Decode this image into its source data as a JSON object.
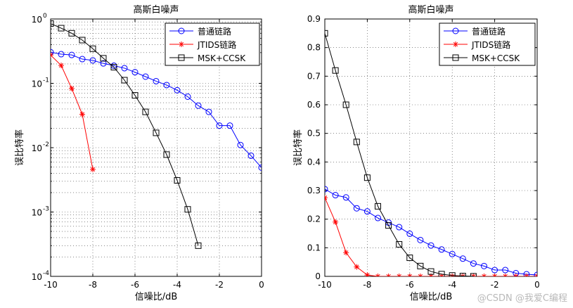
{
  "watermark": "@CSDN @我爱C编程",
  "chart_data": [
    {
      "type": "line",
      "title": "高斯白噪声",
      "xlabel": "信噪比/dB",
      "ylabel": "误比特率",
      "yscale": "log",
      "xlim": [
        -10,
        0
      ],
      "ylim": [
        0.0001,
        1
      ],
      "grid": true,
      "legend_position": "top-right",
      "xticks": [
        -10,
        -8,
        -6,
        -4,
        -2,
        0
      ],
      "xtick_labels": [
        "-10",
        "-8",
        "-6",
        "-4",
        "-2",
        "0"
      ],
      "yticks": [
        0.0001,
        0.001,
        0.01,
        0.1,
        1
      ],
      "ytick_labels": [
        {
          "base": "10",
          "exp": "-4"
        },
        {
          "base": "10",
          "exp": "-3"
        },
        {
          "base": "10",
          "exp": "-2"
        },
        {
          "base": "10",
          "exp": "-1"
        },
        {
          "base": "10",
          "exp": "0"
        }
      ],
      "series": [
        {
          "name": "普通链路",
          "color": "#0000ff",
          "marker": "circle",
          "x": [
            -10,
            -9.5,
            -9,
            -8.5,
            -8,
            -7.5,
            -7,
            -6.5,
            -6,
            -5.5,
            -5,
            -4.5,
            -4,
            -3.5,
            -3,
            -2.5,
            -2,
            -1.5,
            -1,
            -0.5,
            0
          ],
          "y": [
            0.305,
            0.284,
            0.276,
            0.238,
            0.227,
            0.204,
            0.188,
            0.172,
            0.149,
            0.127,
            0.108,
            0.094,
            0.078,
            0.062,
            0.045,
            0.036,
            0.022,
            0.022,
            0.011,
            0.0075,
            0.0049
          ]
        },
        {
          "name": "JTIDS链路",
          "color": "#ff0000",
          "marker": "star",
          "x": [
            -10,
            -9.5,
            -9,
            -8.5,
            -8
          ],
          "y": [
            0.275,
            0.19,
            0.083,
            0.033,
            0.0046
          ]
        },
        {
          "name": "MSK+CCSK",
          "color": "#000000",
          "marker": "square",
          "x": [
            -10,
            -9.5,
            -9,
            -8.5,
            -8,
            -7.5,
            -7,
            -6.5,
            -6,
            -5.5,
            -5,
            -4.5,
            -4,
            -3.5,
            -3
          ],
          "y": [
            0.85,
            0.72,
            0.6,
            0.47,
            0.345,
            0.245,
            0.178,
            0.112,
            0.065,
            0.036,
            0.017,
            0.0078,
            0.0031,
            0.0011,
            0.0003
          ]
        }
      ]
    },
    {
      "type": "line",
      "title": "高斯白噪声",
      "xlabel": "信噪比/dB",
      "ylabel": "误比特率",
      "yscale": "linear",
      "xlim": [
        -10,
        0
      ],
      "ylim": [
        0,
        0.9
      ],
      "grid": true,
      "legend_position": "top-right",
      "xticks": [
        -10,
        -8,
        -6,
        -4,
        -2,
        0
      ],
      "xtick_labels": [
        "-10",
        "-8",
        "-6",
        "-4",
        "-2",
        "0"
      ],
      "yticks": [
        0,
        0.1,
        0.2,
        0.3,
        0.4,
        0.5,
        0.6,
        0.7,
        0.8,
        0.9
      ],
      "ytick_labels": [
        "0",
        "0.1",
        "0.2",
        "0.3",
        "0.4",
        "0.5",
        "0.6",
        "0.7",
        "0.8",
        "0.9"
      ],
      "series": [
        {
          "name": "普通链路",
          "color": "#0000ff",
          "marker": "circle",
          "x": [
            -10,
            -9.5,
            -9,
            -8.5,
            -8,
            -7.5,
            -7,
            -6.5,
            -6,
            -5.5,
            -5,
            -4.5,
            -4,
            -3.5,
            -3,
            -2.5,
            -2,
            -1.5,
            -1,
            -0.5,
            0
          ],
          "y": [
            0.305,
            0.284,
            0.276,
            0.238,
            0.227,
            0.204,
            0.188,
            0.172,
            0.149,
            0.127,
            0.108,
            0.094,
            0.078,
            0.062,
            0.045,
            0.036,
            0.022,
            0.022,
            0.011,
            0.0075,
            0.0049
          ]
        },
        {
          "name": "JTIDS链路",
          "color": "#ff0000",
          "marker": "star",
          "x": [
            -10,
            -9.5,
            -9,
            -8.5,
            -8,
            -7.5,
            -7,
            -6.5,
            -6,
            -5.5,
            -5,
            -4.5,
            -4,
            -3.5,
            -3,
            -2.5,
            -2,
            -1.5,
            -1,
            -0.5,
            0
          ],
          "y": [
            0.275,
            0.19,
            0.083,
            0.033,
            0.0046,
            0,
            0,
            0,
            0,
            0,
            0,
            0,
            0,
            0,
            0,
            0,
            0,
            0,
            0,
            0,
            0
          ]
        },
        {
          "name": "MSK+CCSK",
          "color": "#000000",
          "marker": "square",
          "x": [
            -10,
            -9.5,
            -9,
            -8.5,
            -8,
            -7.5,
            -7,
            -6.5,
            -6,
            -5.5,
            -5,
            -4.5,
            -4,
            -3.5,
            -3
          ],
          "y": [
            0.85,
            0.72,
            0.6,
            0.47,
            0.345,
            0.245,
            0.178,
            0.112,
            0.065,
            0.036,
            0.017,
            0.0078,
            0.0031,
            0.0011,
            0.0003
          ]
        }
      ]
    }
  ]
}
